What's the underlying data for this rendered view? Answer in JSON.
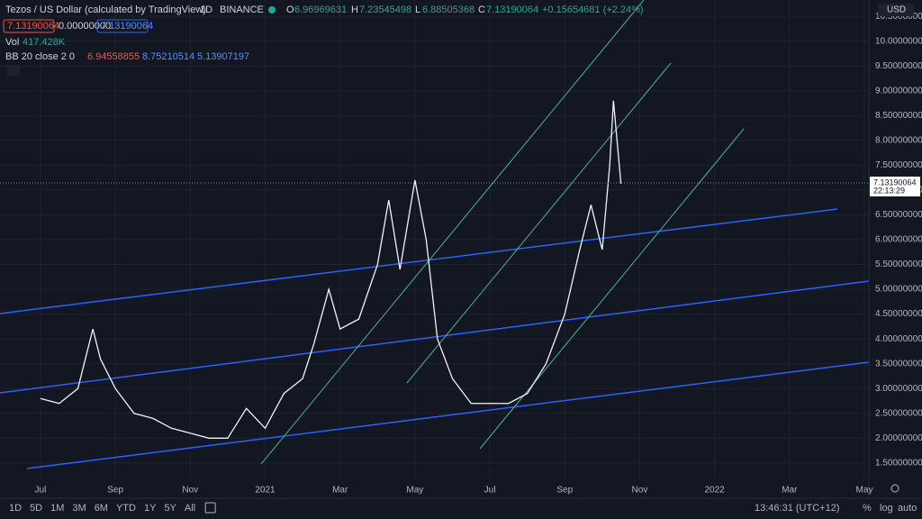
{
  "header": {
    "symbol": "Tezos / US Dollar (calculated by TradingView)",
    "interval": "1D",
    "exchange": "BINANCE",
    "o_label": "O",
    "open": "6.96969631",
    "h_label": "H",
    "high": "7.23545498",
    "l_label": "L",
    "low": "6.88505368",
    "c_label": "C",
    "close": "7.13190064",
    "change": "+0.15654681 (+2.24%)",
    "bid": "7.13190064",
    "spread": "0.00000000",
    "ask": "7.13190064",
    "vol_label": "Vol",
    "vol": "417.428K",
    "bb_label": "BB 20 close 2 0",
    "bb_basis": "6.94558855",
    "bb_upper": "8.75210514",
    "bb_lower": "5.13907197",
    "currency": "USD",
    "last_price": "7.13190064",
    "countdown": "22:13:29"
  },
  "footer": {
    "ranges": [
      "1D",
      "5D",
      "1M",
      "3M",
      "6M",
      "YTD",
      "1Y",
      "5Y",
      "All"
    ],
    "clock": "13:46:31 (UTC+12)",
    "percent": "%",
    "log": "log",
    "auto": "auto"
  },
  "chart_data": {
    "type": "line",
    "color": "#f0f3fa",
    "x": [
      0,
      0.5,
      1,
      1.4,
      1.6,
      2,
      2.5,
      3,
      3.5,
      4,
      4.5,
      5,
      5.5,
      6,
      6.5,
      7,
      7.3,
      7.7,
      8,
      8.5,
      9,
      9.3,
      9.6,
      10,
      10.3,
      10.6,
      11,
      11.5,
      12,
      12.5,
      13,
      13.5,
      14,
      14.4,
      14.7,
      15,
      15.2,
      15.3,
      15.5
    ],
    "values": [
      2.8,
      2.7,
      3.0,
      4.2,
      3.6,
      3.0,
      2.5,
      2.4,
      2.2,
      2.1,
      2.0,
      2.0,
      2.6,
      2.2,
      2.9,
      3.2,
      3.9,
      5.0,
      4.2,
      4.4,
      5.5,
      6.8,
      5.4,
      7.2,
      6.0,
      4.0,
      3.2,
      2.7,
      2.7,
      2.7,
      2.9,
      3.5,
      4.5,
      5.8,
      6.7,
      5.8,
      7.5,
      8.8,
      7.13
    ],
    "xlim": [
      -1.08,
      22.12
    ],
    "xticks": [
      {
        "value": 0,
        "label": "Jul"
      },
      {
        "value": 2,
        "label": "Sep"
      },
      {
        "value": 4,
        "label": "Nov"
      },
      {
        "value": 6,
        "label": "2021"
      },
      {
        "value": 8,
        "label": "Mar"
      },
      {
        "value": 10,
        "label": "May"
      },
      {
        "value": 12,
        "label": "Jul"
      },
      {
        "value": 14,
        "label": "Sep"
      },
      {
        "value": 16,
        "label": "Nov"
      },
      {
        "value": 18,
        "label": "2022"
      },
      {
        "value": 20,
        "label": "Mar"
      },
      {
        "value": 22,
        "label": "May"
      }
    ],
    "ylim": [
      1.17,
      10.83
    ],
    "yticks": [
      {
        "value": 1.5,
        "label": "1.50000000"
      },
      {
        "value": 2,
        "label": "2.00000000"
      },
      {
        "value": 2.5,
        "label": "2.50000000"
      },
      {
        "value": 3,
        "label": "3.00000000"
      },
      {
        "value": 3.5,
        "label": "3.50000000"
      },
      {
        "value": 4,
        "label": "4.00000000"
      },
      {
        "value": 4.5,
        "label": "4.50000000"
      },
      {
        "value": 5,
        "label": "5.00000000"
      },
      {
        "value": 5.5,
        "label": "5.50000000"
      },
      {
        "value": 6,
        "label": "6.00000000"
      },
      {
        "value": 6.5,
        "label": "6.50000000"
      },
      {
        "value": 7,
        "label": "7.00000000"
      },
      {
        "value": 7.5,
        "label": "7.50000000"
      },
      {
        "value": 8,
        "label": "8.00000000"
      },
      {
        "value": 8.5,
        "label": "8.50000000"
      },
      {
        "value": 9,
        "label": "9.00000000"
      },
      {
        "value": 9.5,
        "label": "9.50000000"
      },
      {
        "value": 10,
        "label": "10.00000000"
      },
      {
        "value": 10.5,
        "label": "10.50000000"
      }
    ],
    "grid": true
  }
}
